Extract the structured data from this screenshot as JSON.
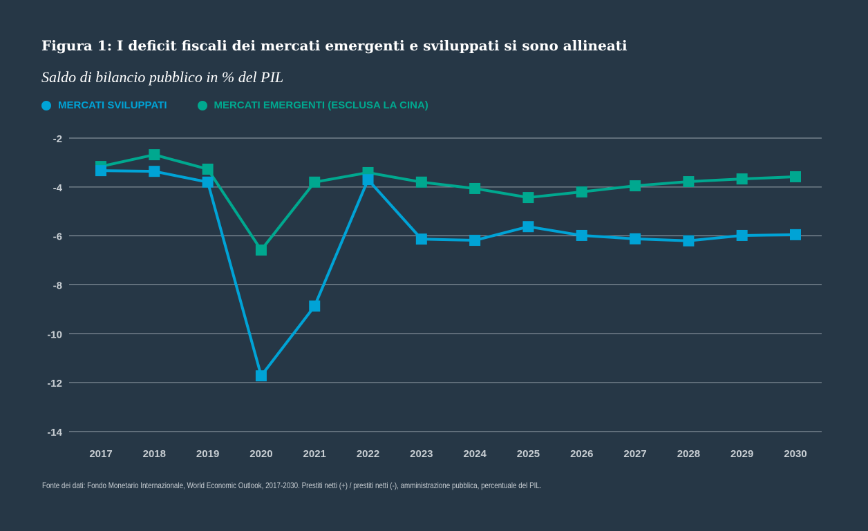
{
  "title": "Figura 1: I deficit fiscali dei mercati emergenti e sviluppati si sono allineati",
  "subtitle": "Saldo di bilancio pubblico in % del PIL",
  "footnote": "Fonte dei dati: Fondo Monetario Internazionale, World Economic Outlook, 2017-2030. Prestiti netti (+) / prestiti netti (-), amministrazione pubblica, percentuale del PIL.",
  "chart_data": {
    "type": "line",
    "categories": [
      "2017",
      "2018",
      "2019",
      "2020",
      "2021",
      "2022",
      "2023",
      "2024",
      "2025",
      "2026",
      "2027",
      "2028",
      "2029",
      "2030"
    ],
    "ylim": [
      -14,
      -2
    ],
    "yticks": [
      -2,
      -4,
      -6,
      -8,
      -10,
      -12,
      -14
    ],
    "grid": true,
    "legend_placement": "top-left",
    "series": [
      {
        "name": "MERCATI SVILUPPATI",
        "color": "#00a3d6",
        "values": [
          -3.33,
          -3.36,
          -3.8,
          -11.72,
          -8.87,
          -3.7,
          -6.13,
          -6.18,
          -5.62,
          -5.98,
          -6.12,
          -6.2,
          -5.98,
          -5.95
        ]
      },
      {
        "name": "MERCATI EMERGENTI (ESCLUSA LA CINA)",
        "color": "#00a88f",
        "values": [
          -3.16,
          -2.68,
          -3.27,
          -6.58,
          -3.8,
          -3.41,
          -3.8,
          -4.06,
          -4.43,
          -4.2,
          -3.95,
          -3.78,
          -3.67,
          -3.58
        ]
      }
    ]
  }
}
